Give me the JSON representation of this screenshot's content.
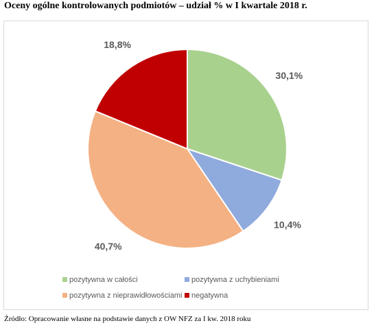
{
  "title": "Oceny ogólne kontrolowanych podmiotów – udział % w I kwartale 2018 r.",
  "source": "Źródło: Opracowanie własne na podstawie danych z OW NFZ za I kw. 2018 roku",
  "chart_data": {
    "type": "pie",
    "slices": [
      {
        "label": "pozytywna w całości",
        "value": 30.1,
        "display": "30,1%",
        "color": "#a9d18e"
      },
      {
        "label": "pozytywna z uchybieniami",
        "value": 10.4,
        "display": "10,4%",
        "color": "#8faadc"
      },
      {
        "label": "pozytywna z nieprawidłowościami",
        "value": 40.7,
        "display": "40,7%",
        "color": "#f4b183"
      },
      {
        "label": "negatywna",
        "value": 18.8,
        "display": "18,8%",
        "color": "#c00000"
      }
    ],
    "legend_position": "bottom"
  }
}
